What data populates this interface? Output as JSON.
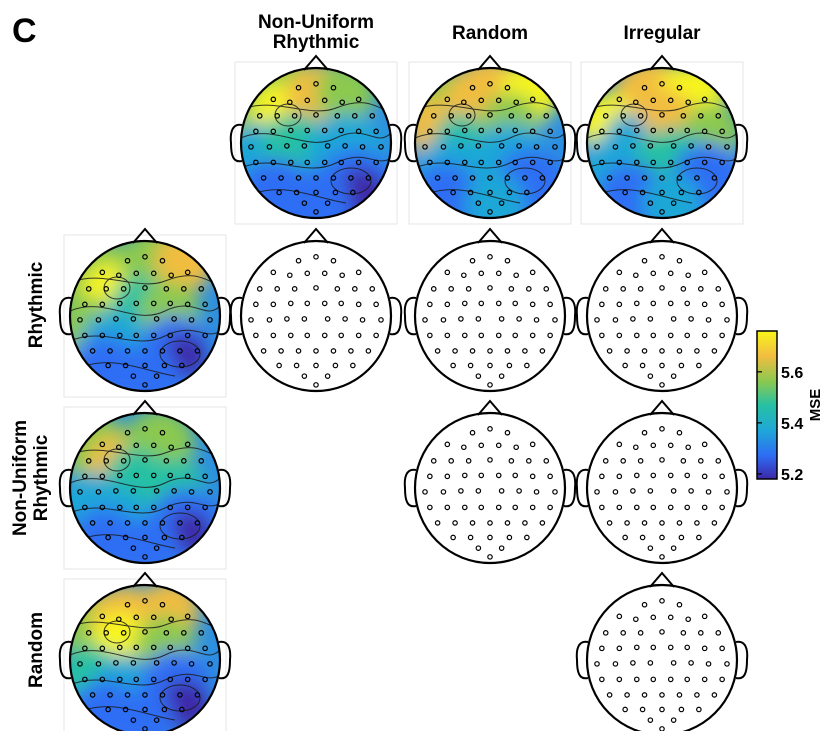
{
  "panel_label": "C",
  "column_titles": [
    {
      "lines": [
        "Non-Uniform",
        "Rhythmic"
      ]
    },
    {
      "lines": [
        "Random"
      ]
    },
    {
      "lines": [
        "Irregular"
      ]
    }
  ],
  "row_titles": [
    {
      "lines": [
        "Rhythmic"
      ]
    },
    {
      "lines": [
        "Non-Uniform",
        "Rhythmic"
      ]
    },
    {
      "lines": [
        "Random"
      ]
    }
  ],
  "colorbar": {
    "label": "MSE",
    "ticks": [
      "5.6",
      "5.4",
      "5.2"
    ],
    "tick_values": [
      5.6,
      5.4,
      5.2
    ],
    "range": [
      5.18,
      5.76
    ],
    "colormap": [
      "#3d26a8",
      "#2d6ef4",
      "#1fa7d7",
      "#27c1a3",
      "#8bc94f",
      "#f1bd41",
      "#f8f51b"
    ]
  },
  "chart_data": {
    "type": "heatmap",
    "description_units": "MSE topographic scalp maps",
    "top_row_maps": [
      "Non-Uniform Rhythmic",
      "Random",
      "Irregular"
    ],
    "left_column_maps": [
      "Rhythmic",
      "Non-Uniform Rhythmic",
      "Random"
    ],
    "blank_comparison_maps": [
      [
        "Rhythmic",
        "Non-Uniform Rhythmic"
      ],
      [
        "Rhythmic",
        "Random"
      ],
      [
        "Rhythmic",
        "Irregular"
      ],
      [
        "Non-Uniform Rhythmic",
        "Random"
      ],
      [
        "Non-Uniform Rhythmic",
        "Irregular"
      ],
      [
        "Random",
        "Irregular"
      ]
    ]
  }
}
